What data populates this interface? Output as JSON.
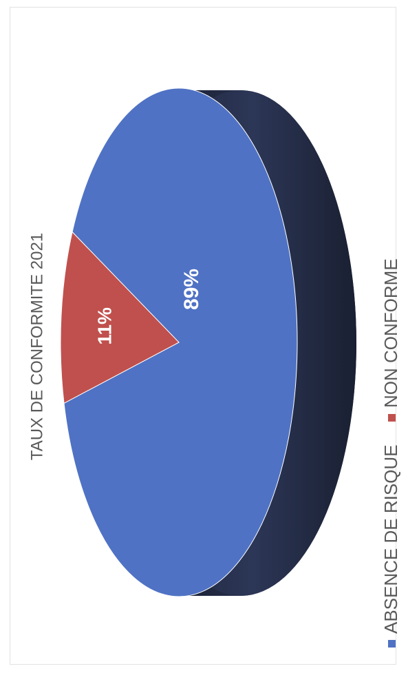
{
  "chart_data": {
    "type": "pie",
    "title": "TAUX DE CONFORMITE 2021",
    "categories": [
      "ABSENCE DE RISQUE",
      "NON CONFORME"
    ],
    "values": [
      89,
      11
    ],
    "data_labels": [
      "89%",
      "11%"
    ],
    "colors": [
      "#4f72c4",
      "#c0504d"
    ],
    "edge_color": "#2a3452",
    "style": "3d",
    "orientation": "rotated 90° counter-clockwise",
    "legend_position": "bottom"
  }
}
